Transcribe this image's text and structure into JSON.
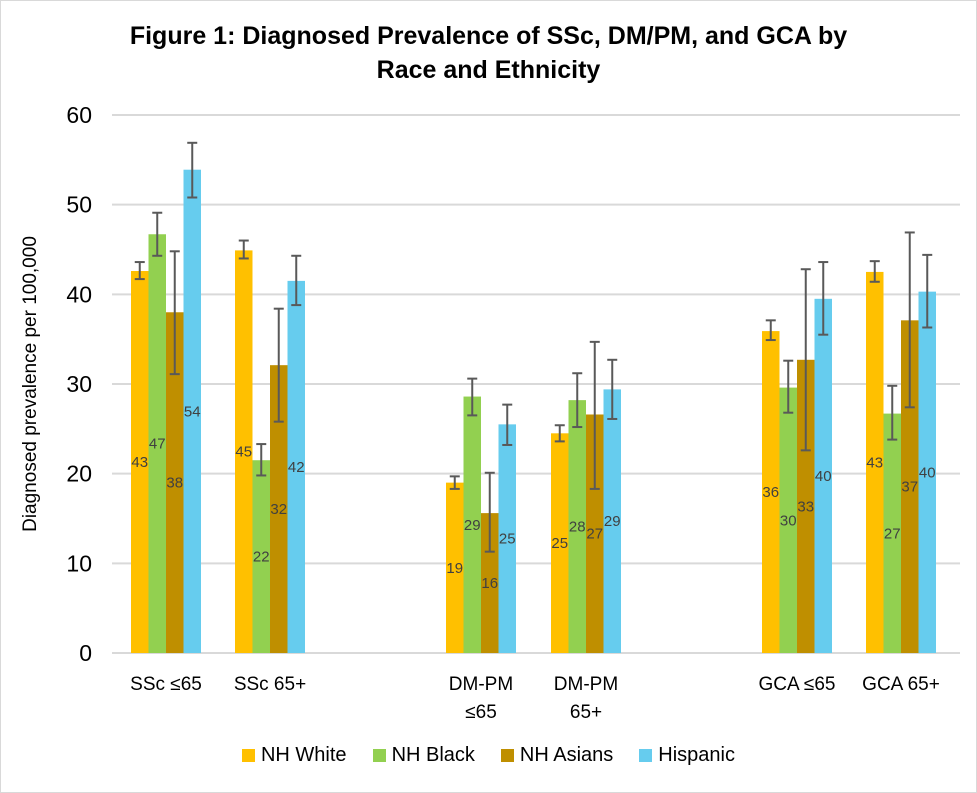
{
  "chart_data": {
    "type": "bar",
    "title_line1": "Figure 1: Diagnosed Prevalence of SSc, DM/PM, and GCA by",
    "title_line2": "Race and Ethnicity",
    "xlabel": "",
    "ylabel": "Diagnosed prevalence per 100,000",
    "ylim": [
      0,
      60
    ],
    "yticks": [
      0,
      10,
      20,
      30,
      40,
      50,
      60
    ],
    "grid": true,
    "legend_position": "bottom",
    "categories": [
      {
        "line1": "SSc ≤65",
        "line2": "",
        "group": 0
      },
      {
        "line1": "SSc 65+",
        "line2": "",
        "group": 0
      },
      {
        "line1": "DM-PM",
        "line2": "≤65",
        "group": 1
      },
      {
        "line1": "DM-PM",
        "line2": "65+",
        "group": 1
      },
      {
        "line1": "GCA ≤65",
        "line2": "",
        "group": 2
      },
      {
        "line1": "GCA 65+",
        "line2": "",
        "group": 2
      }
    ],
    "series": [
      {
        "name": "NH White",
        "color": "#FFC000",
        "values": [
          42.6,
          44.9,
          19.0,
          24.5,
          35.9,
          42.5
        ],
        "labels": [
          "43",
          "45",
          "19",
          "25",
          "36",
          "43"
        ],
        "err_low": [
          41.7,
          44.0,
          18.3,
          23.6,
          34.9,
          41.4
        ],
        "err_high": [
          43.6,
          46.0,
          19.7,
          25.4,
          37.1,
          43.7
        ]
      },
      {
        "name": "NH Black",
        "color": "#92D050",
        "values": [
          46.7,
          21.5,
          28.6,
          28.2,
          29.6,
          26.7
        ],
        "labels": [
          "47",
          "22",
          "29",
          "28",
          "30",
          "27"
        ],
        "err_low": [
          44.3,
          19.8,
          26.5,
          25.2,
          26.8,
          23.8
        ],
        "err_high": [
          49.1,
          23.3,
          30.6,
          31.2,
          32.6,
          29.8
        ]
      },
      {
        "name": "NH Asians",
        "color": "#BF8F00",
        "values": [
          38.0,
          32.1,
          15.6,
          26.6,
          32.7,
          37.1
        ],
        "labels": [
          "38",
          "32",
          "16",
          "27",
          "33",
          "37"
        ],
        "err_low": [
          31.1,
          25.8,
          11.3,
          18.3,
          22.6,
          27.4
        ],
        "err_high": [
          44.8,
          38.4,
          20.1,
          34.7,
          42.8,
          46.9
        ]
      },
      {
        "name": "Hispanic",
        "color": "#66CCEE",
        "values": [
          53.9,
          41.5,
          25.5,
          29.4,
          39.5,
          40.3
        ],
        "labels": [
          "54",
          "42",
          "25",
          "29",
          "40",
          "40"
        ],
        "err_low": [
          50.8,
          38.8,
          23.2,
          26.1,
          35.5,
          36.3
        ],
        "err_high": [
          56.9,
          44.3,
          27.7,
          32.7,
          43.6,
          44.4
        ]
      }
    ]
  }
}
